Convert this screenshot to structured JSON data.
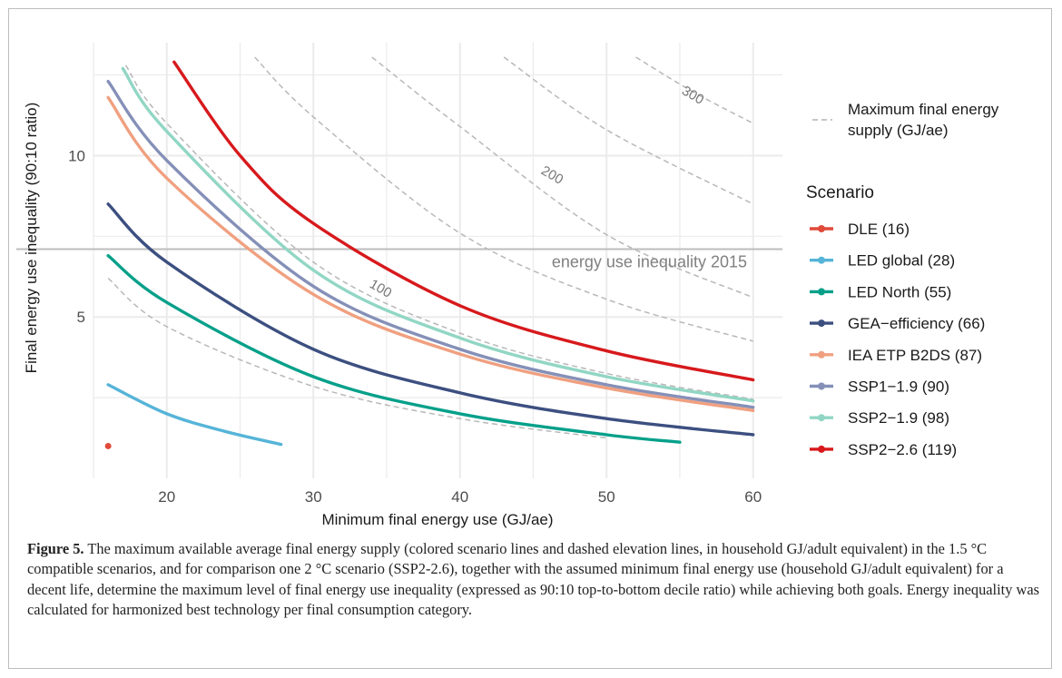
{
  "chart_data": {
    "type": "line",
    "xlabel": "Minimum final energy use (GJ/ae)",
    "ylabel": "Final energy use inequality (90:10 ratio)",
    "xlim": [
      15,
      62
    ],
    "ylim": [
      0,
      13.5
    ],
    "x_ticks": [
      20,
      30,
      40,
      50,
      60
    ],
    "y_ticks": [
      5,
      10
    ],
    "grid": true,
    "series": [
      {
        "name": "DLE (16)",
        "color": "#e04a3a",
        "x": [
          16
        ],
        "y": [
          1.0
        ]
      },
      {
        "name": "LED global (28)",
        "color": "#56b4d8",
        "x": [
          16,
          20,
          24,
          27.8
        ],
        "y": [
          2.9,
          2.0,
          1.45,
          1.05
        ]
      },
      {
        "name": "LED North (55)",
        "color": "#06a08a",
        "x": [
          16,
          20,
          30,
          40,
          50,
          55
        ],
        "y": [
          6.9,
          5.45,
          3.15,
          2.0,
          1.35,
          1.12
        ]
      },
      {
        "name": "GEA−efficiency (66)",
        "color": "#3c4f80",
        "x": [
          16,
          20,
          30,
          40,
          50,
          60
        ],
        "y": [
          8.5,
          6.7,
          4.0,
          2.65,
          1.85,
          1.35
        ]
      },
      {
        "name": "IEA ETP B2DS (87)",
        "color": "#f0a080",
        "x": [
          16,
          20,
          30,
          40,
          50,
          60
        ],
        "y": [
          11.8,
          9.3,
          5.7,
          3.85,
          2.8,
          2.1
        ]
      },
      {
        "name": "SSP1−1.9 (90)",
        "color": "#8590b8",
        "x": [
          16,
          20,
          30,
          40,
          50,
          60
        ],
        "y": [
          12.3,
          9.85,
          5.95,
          4.0,
          2.9,
          2.2
        ]
      },
      {
        "name": "SSP2−1.9 (98)",
        "color": "#91d6c4",
        "x": [
          17,
          20,
          30,
          40,
          50,
          60
        ],
        "y": [
          12.7,
          10.75,
          6.45,
          4.35,
          3.15,
          2.4
        ]
      },
      {
        "name": "SSP2−2.6 (119)",
        "color": "#d7191c",
        "x": [
          20.5,
          25,
          30,
          40,
          50,
          60
        ],
        "y": [
          12.9,
          10.0,
          7.9,
          5.35,
          3.95,
          3.05
        ]
      }
    ],
    "contours": [
      {
        "label": "",
        "x": [
          16,
          20,
          30,
          40,
          50
        ],
        "y": [
          6.2,
          4.7,
          2.85,
          1.85,
          1.25
        ]
      },
      {
        "label": "100",
        "x": [
          17.2,
          20,
          30,
          40,
          50,
          60
        ],
        "y": [
          12.8,
          11.0,
          6.7,
          4.5,
          3.25,
          2.45
        ]
      },
      {
        "label": "200",
        "x": [
          34,
          40,
          50,
          60
        ],
        "y": [
          13.05,
          10.9,
          7.55,
          5.6
        ]
      },
      {
        "label": "300",
        "x": [
          43,
          50,
          60
        ],
        "y": [
          13.05,
          10.8,
          8.5
        ]
      },
      {
        "label": "",
        "x": [
          26,
          30,
          40,
          50,
          60
        ],
        "y": [
          13.05,
          11.2,
          7.6,
          5.55,
          4.25
        ]
      },
      {
        "label": "",
        "x": [
          52,
          56,
          60
        ],
        "y": [
          13.05,
          11.95,
          11.0
        ]
      }
    ],
    "reference_line": {
      "y": 7.1,
      "label": "energy use inequality 2015"
    },
    "legend": {
      "placement": "right",
      "dashed_key_label": "Maximum final energy supply (GJ/ae)",
      "title": "Scenario"
    }
  },
  "caption": {
    "label": "Figure 5.",
    "text": " The maximum available average final energy supply (colored scenario lines and dashed elevation lines, in household GJ/adult equivalent) in the 1.5 °C compatible scenarios, and for comparison one 2 °C scenario (SSP2-2.6), together with the assumed minimum final energy use (household GJ/adult equivalent) for a decent life, determine the maximum level of final energy use inequality (expressed as 90:10 top-to-bottom decile ratio) while achieving both goals. Energy inequality was calculated for harmonized best technology per final consumption category."
  }
}
